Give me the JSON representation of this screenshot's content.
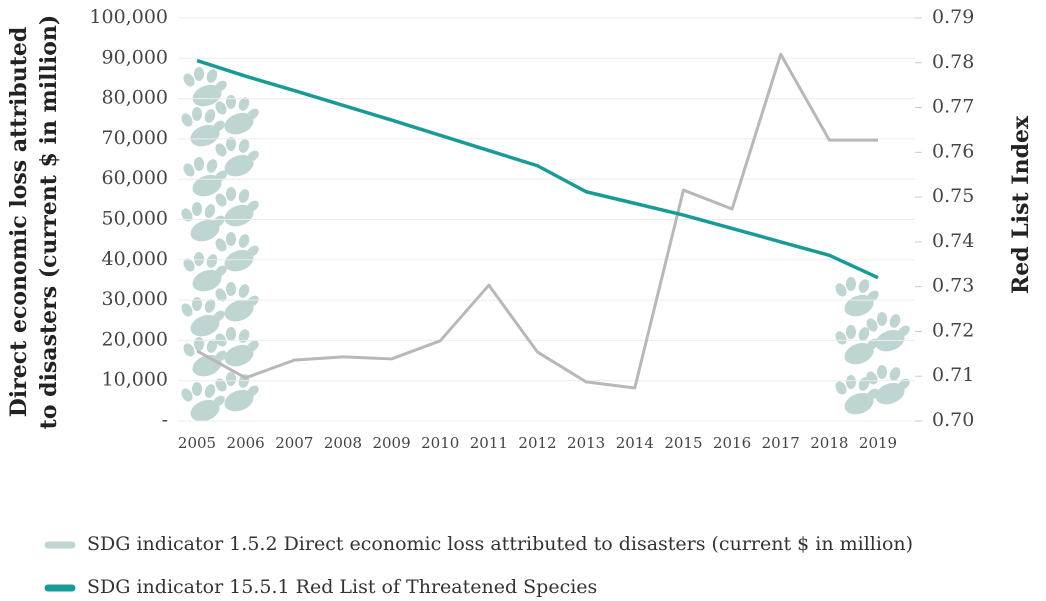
{
  "chart_data": {
    "type": "line",
    "ylabel": [
      "Direct economic loss attributed",
      "to disasters (current $ in million)"
    ],
    "y2label": "Red List Index",
    "categories": [
      "2005",
      "2006",
      "2007",
      "2008",
      "2009",
      "2010",
      "2011",
      "2012",
      "2013",
      "2014",
      "2015",
      "2016",
      "2017",
      "2018",
      "2019"
    ],
    "series": [
      {
        "name": "SDG indicator 1.5.2 Direct economic loss attributed to disasters (current $ in million)",
        "color": "#b8b8b8",
        "legend_color": "#bfd5d2",
        "values": [
          17400,
          10700,
          15100,
          15900,
          15400,
          19900,
          33700,
          17100,
          9700,
          8200,
          57300,
          52600,
          91000,
          69700,
          69700
        ]
      },
      {
        "name": "SDG indicator 15.5.1 Red List of Threatened Species",
        "color": "#1a9a96",
        "axis": "y2",
        "values": [
          0.7805,
          0.777,
          0.7738,
          0.7705,
          0.7672,
          0.7638,
          0.7604,
          0.757,
          0.7512,
          0.7486,
          0.746,
          0.743,
          0.74,
          0.737,
          0.732
        ]
      }
    ],
    "ylim": [
      0,
      100000
    ],
    "yticks": [
      {
        "value": 0,
        "label": "-"
      },
      {
        "value": 10000,
        "label": "10,000"
      },
      {
        "value": 20000,
        "label": "20,000"
      },
      {
        "value": 30000,
        "label": "30,000"
      },
      {
        "value": 40000,
        "label": "40,000"
      },
      {
        "value": 50000,
        "label": "50,000"
      },
      {
        "value": 60000,
        "label": "60,000"
      },
      {
        "value": 70000,
        "label": "70,000"
      },
      {
        "value": 80000,
        "label": "80,000"
      },
      {
        "value": 90000,
        "label": "90,000"
      },
      {
        "value": 100000,
        "label": "100,000"
      }
    ],
    "y2lim": [
      0.7,
      0.79
    ],
    "y2ticks": [
      {
        "value": 0.7,
        "label": "0.70"
      },
      0.71,
      0.72,
      0.73,
      0.74,
      0.75,
      0.76,
      0.77,
      0.78,
      0.79
    ],
    "grid": true
  }
}
